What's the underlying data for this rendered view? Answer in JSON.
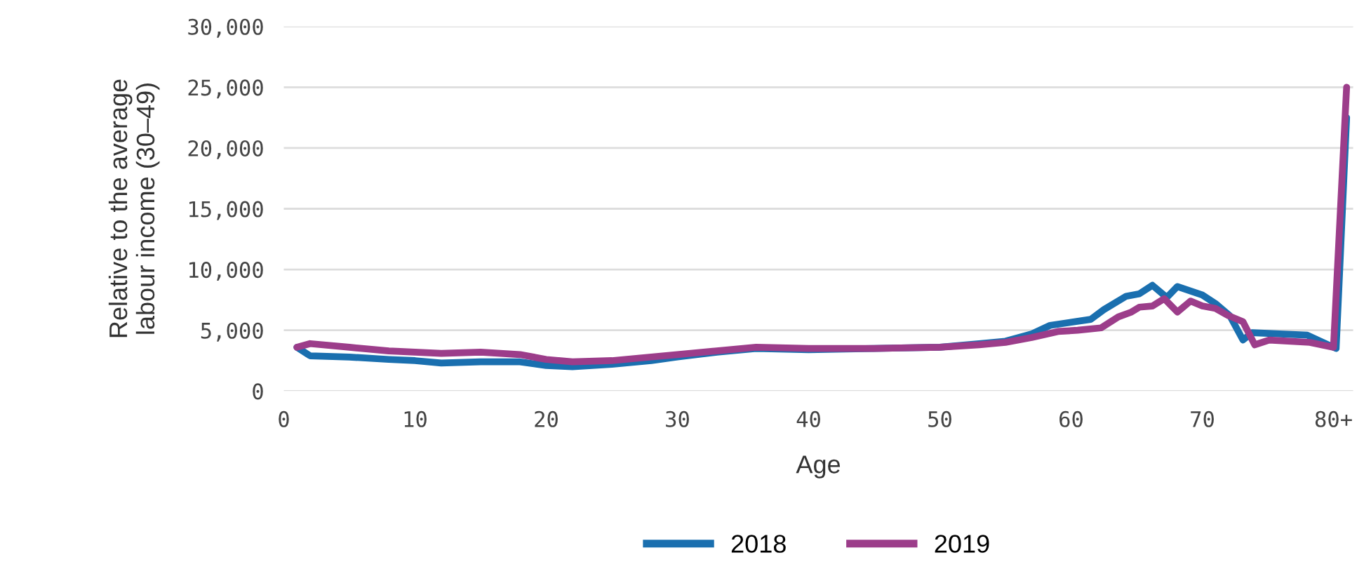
{
  "chart_data": {
    "type": "line",
    "xlabel": "Age",
    "ylabel": "Relative to the average\nlabour income (30–49)",
    "xlim": [
      0,
      81.5
    ],
    "xticks": [
      0,
      10,
      20,
      30,
      40,
      50,
      60,
      70,
      {
        "value": 80,
        "label": "80+"
      }
    ],
    "ylim": [
      0,
      30000
    ],
    "yticks": [
      {
        "value": 0,
        "label": "0"
      },
      {
        "value": 5000,
        "label": "5,000"
      },
      {
        "value": 10000,
        "label": "10,000"
      },
      {
        "value": 15000,
        "label": "15,000"
      },
      {
        "value": 20000,
        "label": "20,000"
      },
      {
        "value": 25000,
        "label": "25,000"
      },
      {
        "value": 30000,
        "label": "30,000"
      }
    ],
    "grid": "y",
    "legend": "bottom",
    "marker": "none",
    "line_style": "solid",
    "series": [
      {
        "name": "2018",
        "color": "#1a6faf",
        "x": [
          1,
          2,
          5,
          8,
          10,
          12,
          15,
          18,
          20,
          22,
          25,
          28,
          30,
          33,
          36,
          40,
          45,
          50,
          53,
          55,
          57,
          58.4,
          61.5,
          62.5,
          64.2,
          65.2,
          66.2,
          67.3,
          68.1,
          70,
          71,
          72.1,
          73.1,
          73.8,
          78,
          80.2,
          81
        ],
        "values": [
          3600,
          2900,
          2800,
          2600,
          2500,
          2300,
          2400,
          2400,
          2100,
          2000,
          2200,
          2500,
          2800,
          3200,
          3500,
          3400,
          3500,
          3600,
          3900,
          4100,
          4700,
          5400,
          5900,
          6700,
          7800,
          8000,
          8700,
          7700,
          8600,
          7900,
          7200,
          6200,
          4200,
          4800,
          4600,
          3500,
          22500
        ]
      },
      {
        "name": "2019",
        "color": "#9c3d8a",
        "x": [
          1,
          2,
          5,
          8,
          12,
          15,
          18,
          20,
          22,
          25,
          28,
          30,
          33,
          36,
          40,
          45,
          50,
          53,
          55,
          57,
          59,
          60.5,
          62.3,
          63.6,
          64.6,
          65.2,
          66.2,
          67.1,
          68.1,
          69.1,
          70,
          71,
          72,
          73.1,
          74,
          75.1,
          78.2,
          80,
          81
        ],
        "values": [
          3600,
          3900,
          3600,
          3300,
          3100,
          3200,
          3000,
          2600,
          2400,
          2500,
          2800,
          3000,
          3300,
          3600,
          3500,
          3500,
          3600,
          3800,
          4000,
          4400,
          4900,
          5000,
          5200,
          6100,
          6500,
          6900,
          7000,
          7600,
          6500,
          7400,
          7000,
          6800,
          6200,
          5700,
          3800,
          4200,
          4000,
          3600,
          25000
        ]
      }
    ]
  }
}
